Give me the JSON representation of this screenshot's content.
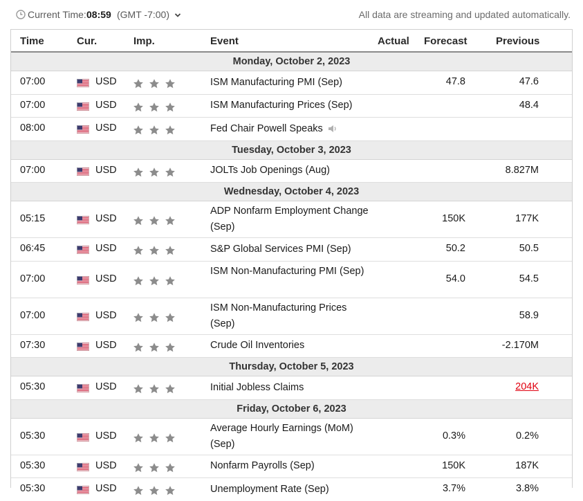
{
  "header": {
    "current_time_label": "Current Time:",
    "current_time": "08:59",
    "timezone": "(GMT -7:00)",
    "streaming_note": "All data are streaming and updated automatically."
  },
  "columns": {
    "time": "Time",
    "currency": "Cur.",
    "importance": "Imp.",
    "event": "Event",
    "actual": "Actual",
    "forecast": "Forecast",
    "previous": "Previous"
  },
  "colors": {
    "star": "#8c8c8c",
    "date_bg": "#ececec",
    "negative": "#e0000f"
  },
  "days": [
    {
      "date": "Monday, October 2, 2023",
      "events": [
        {
          "time": "07:00",
          "currency": "USD",
          "importance": 3,
          "event": "ISM Manufacturing PMI (Sep)",
          "actual": "",
          "forecast": "47.8",
          "previous": "47.6"
        },
        {
          "time": "07:00",
          "currency": "USD",
          "importance": 3,
          "event": "ISM Manufacturing Prices (Sep)",
          "actual": "",
          "forecast": "",
          "previous": "48.4"
        },
        {
          "time": "08:00",
          "currency": "USD",
          "importance": 3,
          "event": "Fed Chair Powell Speaks",
          "actual": "",
          "forecast": "",
          "previous": "",
          "icon": "speaker-icon"
        }
      ]
    },
    {
      "date": "Tuesday, October 3, 2023",
      "events": [
        {
          "time": "07:00",
          "currency": "USD",
          "importance": 3,
          "event": "JOLTs Job Openings (Aug)",
          "actual": "",
          "forecast": "",
          "previous": "8.827M"
        }
      ]
    },
    {
      "date": "Wednesday, October 4, 2023",
      "events": [
        {
          "time": "05:15",
          "currency": "USD",
          "importance": 3,
          "event": "ADP Nonfarm Employment Change (Sep)",
          "actual": "",
          "forecast": "150K",
          "previous": "177K"
        },
        {
          "time": "06:45",
          "currency": "USD",
          "importance": 3,
          "event": "S&P Global Services PMI (Sep)",
          "actual": "",
          "forecast": "50.2",
          "previous": "50.5"
        },
        {
          "time": "07:00",
          "currency": "USD",
          "importance": 3,
          "event": "ISM Non-Manufacturing PMI (Sep)",
          "actual": "",
          "forecast": "54.0",
          "previous": "54.5"
        },
        {
          "time": "07:00",
          "currency": "USD",
          "importance": 3,
          "event": "ISM Non-Manufacturing Prices (Sep)",
          "actual": "",
          "forecast": "",
          "previous": "58.9"
        },
        {
          "time": "07:30",
          "currency": "USD",
          "importance": 3,
          "event": "Crude Oil Inventories",
          "actual": "",
          "forecast": "",
          "previous": "-2.170M"
        }
      ]
    },
    {
      "date": "Thursday, October 5, 2023",
      "events": [
        {
          "time": "05:30",
          "currency": "USD",
          "importance": 3,
          "event": "Initial Jobless Claims",
          "actual": "",
          "forecast": "",
          "previous": "204K",
          "previous_negative": true
        }
      ]
    },
    {
      "date": "Friday, October 6, 2023",
      "events": [
        {
          "time": "05:30",
          "currency": "USD",
          "importance": 3,
          "event": "Average Hourly Earnings (MoM) (Sep)",
          "actual": "",
          "forecast": "0.3%",
          "previous": "0.2%"
        },
        {
          "time": "05:30",
          "currency": "USD",
          "importance": 3,
          "event": "Nonfarm Payrolls (Sep)",
          "actual": "",
          "forecast": "150K",
          "previous": "187K"
        },
        {
          "time": "05:30",
          "currency": "USD",
          "importance": 3,
          "event": "Unemployment Rate (Sep)",
          "actual": "",
          "forecast": "3.7%",
          "previous": "3.8%"
        }
      ]
    }
  ]
}
